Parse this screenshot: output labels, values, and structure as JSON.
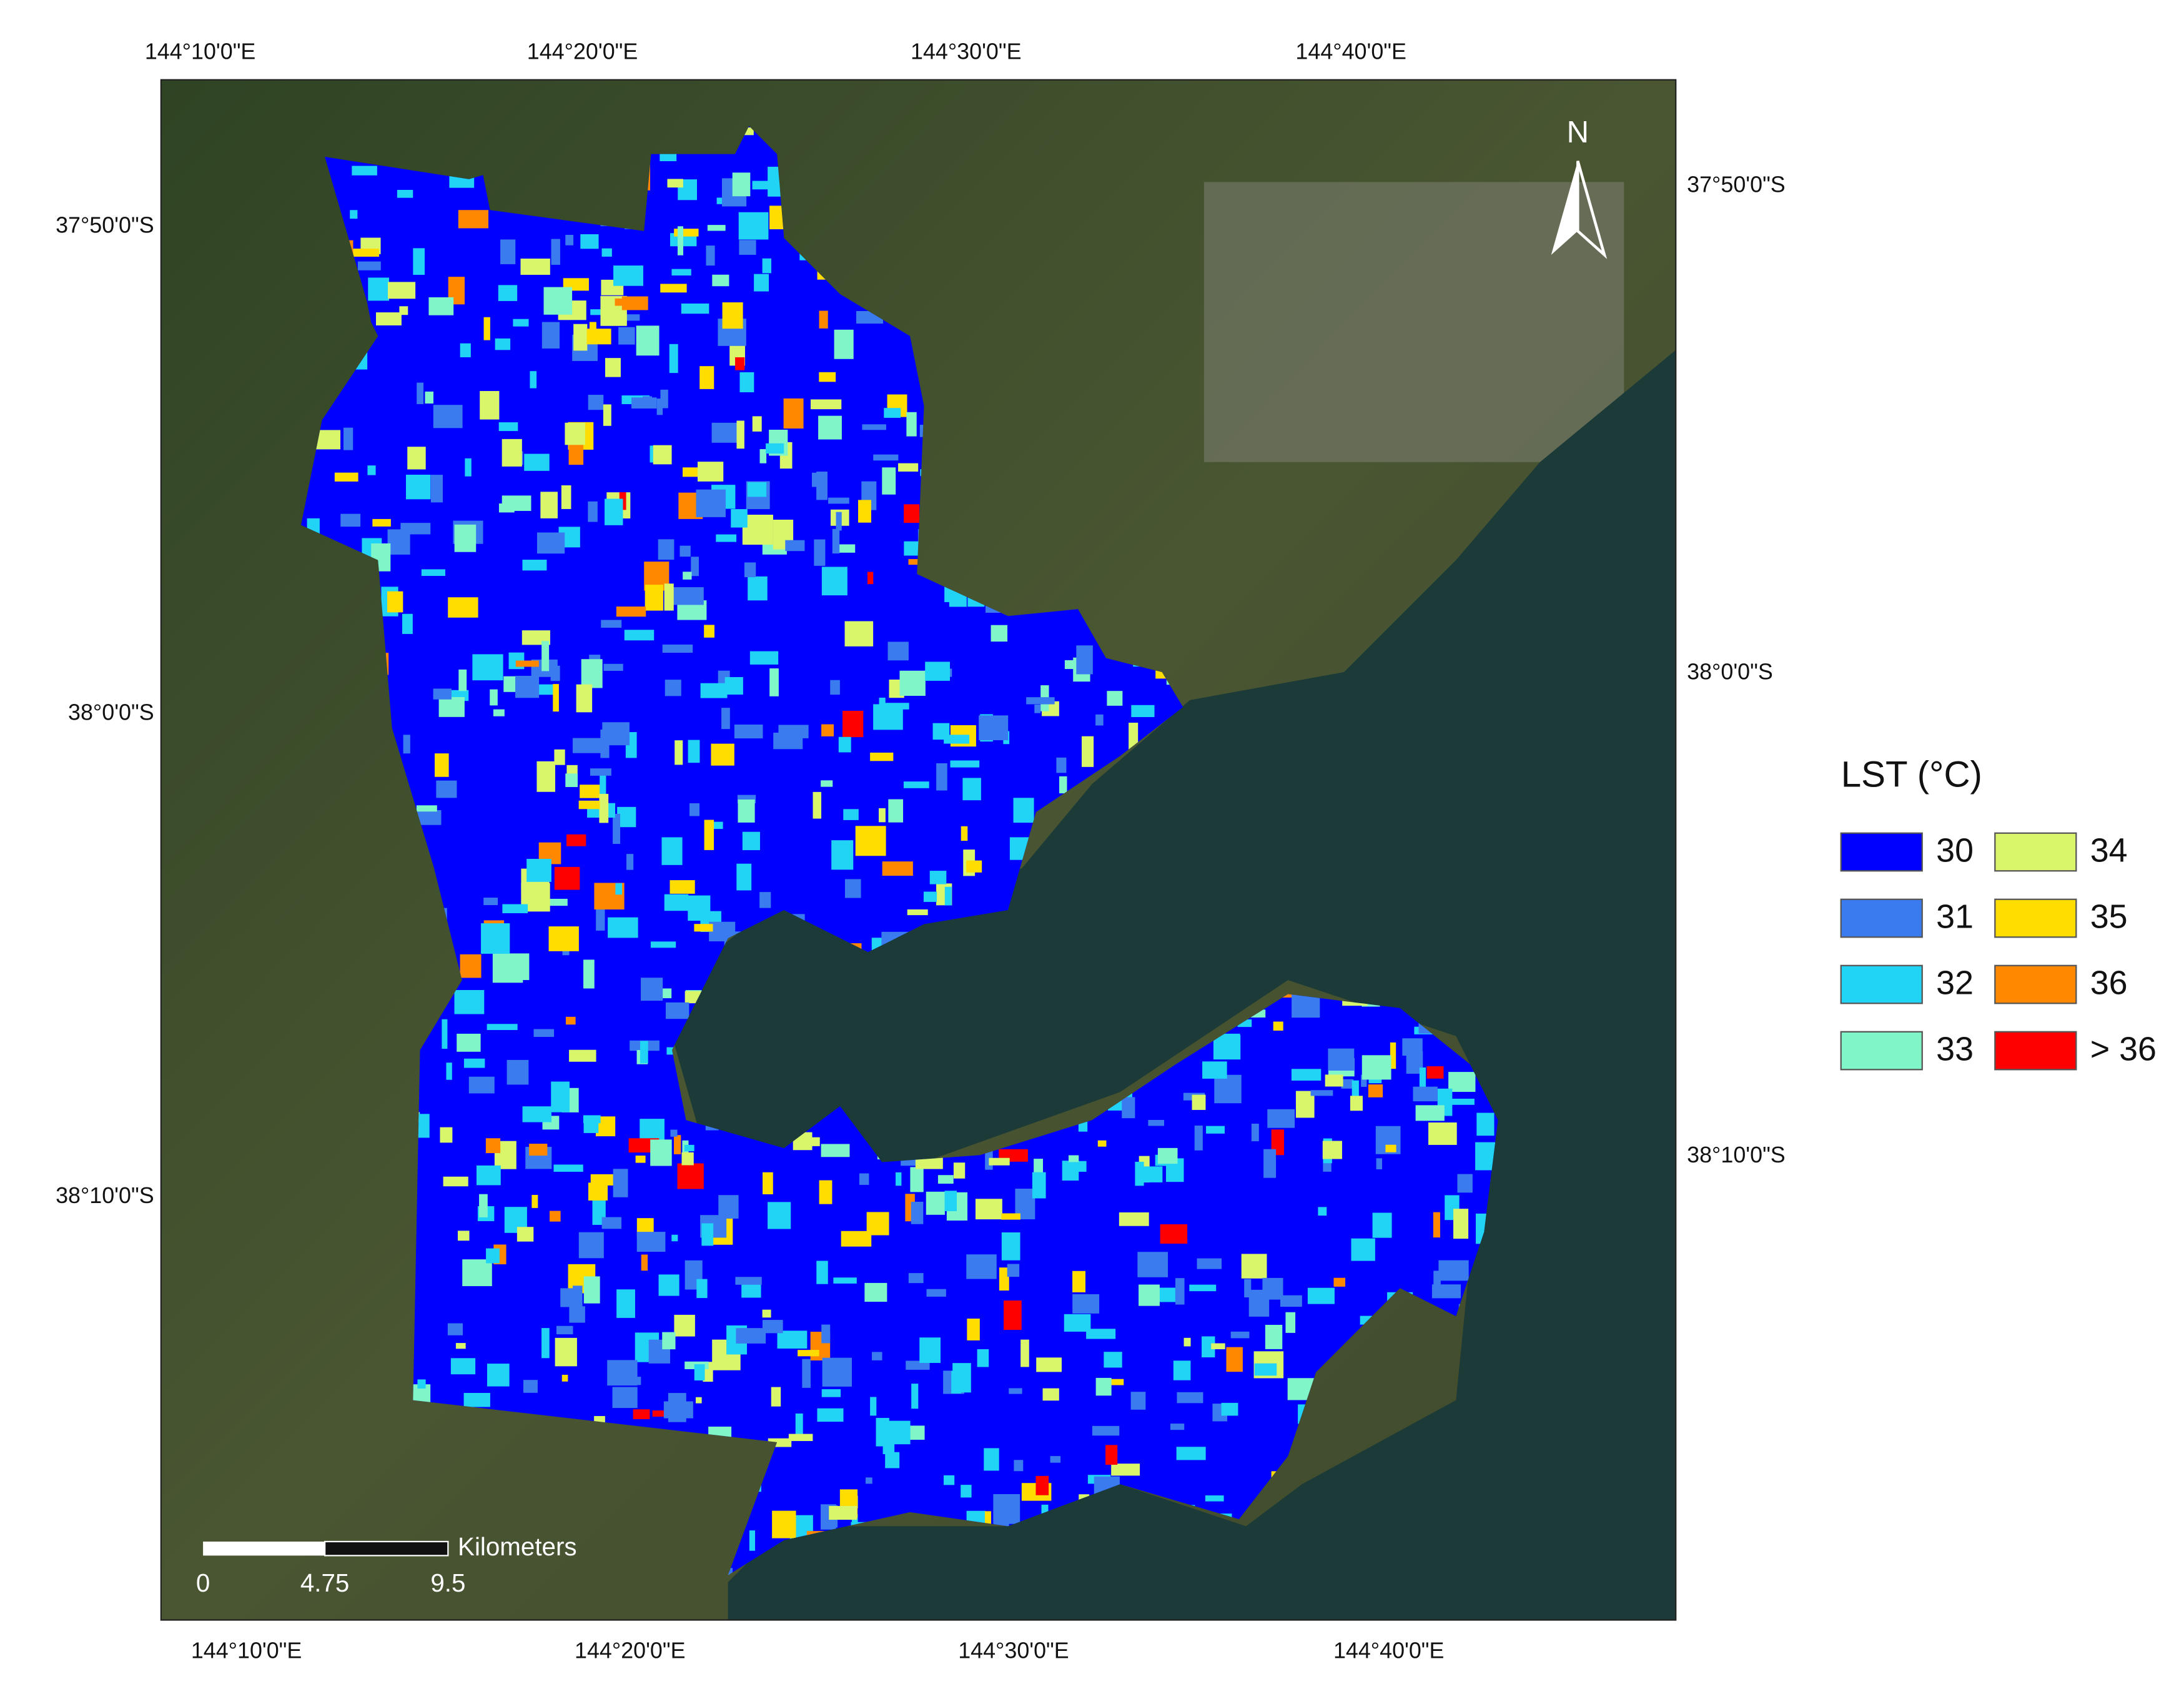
{
  "map": {
    "top_labels": [
      "144°10'0\"E",
      "144°20'0\"E",
      "144°30'0\"E",
      "144°40'0\"E"
    ],
    "bottom_labels": [
      "144°10'0\"E",
      "144°20'0\"E",
      "144°30'0\"E",
      "144°40'0\"E"
    ],
    "left_labels": [
      "37°50'0\"S",
      "38°0'0\"S",
      "38°10'0\"S"
    ],
    "right_labels": [
      "37°50'0\"S",
      "38°0'0\"S",
      "38°10'0\"S"
    ],
    "north": "N",
    "scale": {
      "unit": "Kilometers",
      "ticks": [
        "0",
        "4.75",
        "9.5"
      ]
    },
    "legend": {
      "title": "LST (°C)",
      "items": [
        {
          "label": "30",
          "color": "#0000ff"
        },
        {
          "label": "31",
          "color": "#3a7bf0"
        },
        {
          "label": "32",
          "color": "#21d3f5"
        },
        {
          "label": "33",
          "color": "#7ff5c8"
        },
        {
          "label": "34",
          "color": "#d9f56a"
        },
        {
          "label": "35",
          "color": "#ffdd00"
        },
        {
          "label": "36",
          "color": "#ff8800"
        },
        {
          "label": "> 36",
          "color": "#ff0000"
        }
      ]
    }
  }
}
